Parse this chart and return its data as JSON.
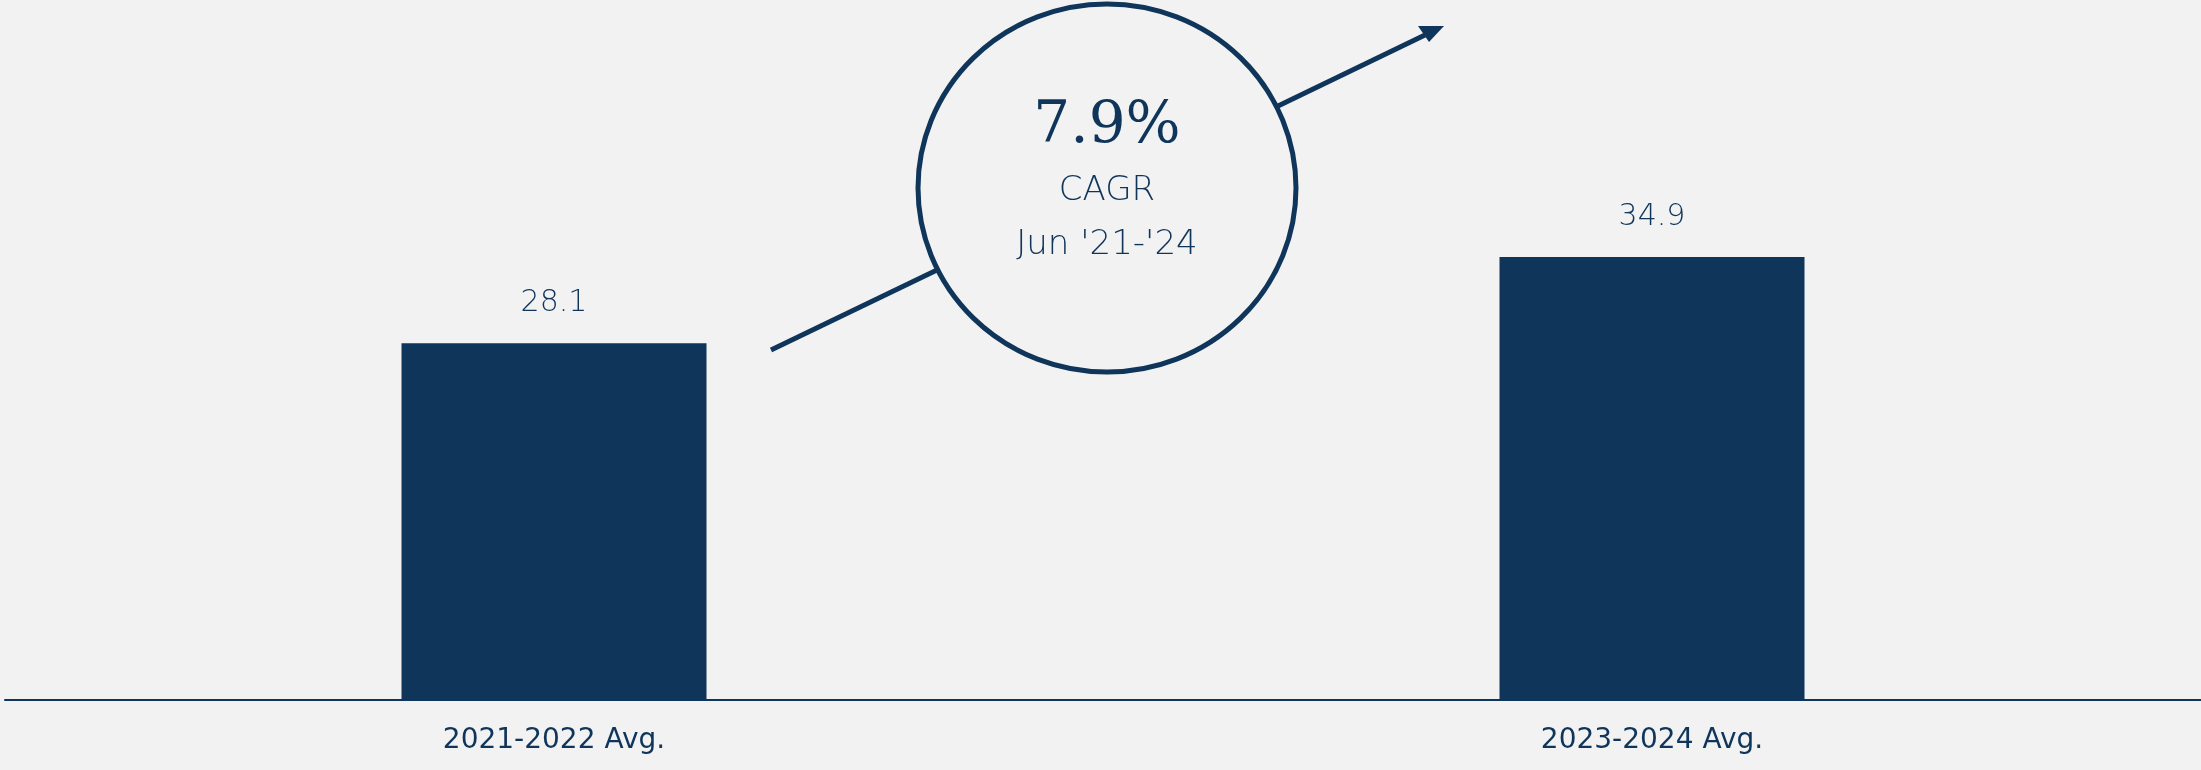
{
  "chart_data": {
    "type": "bar",
    "categories": [
      "2021-2022 Avg.",
      "2023-2024 Avg."
    ],
    "values": [
      28.1,
      34.9
    ],
    "color": "#10355a",
    "data_labels": true,
    "annotations": [
      "7.9%",
      "CAGR",
      "Jun '21-'24"
    ]
  }
}
